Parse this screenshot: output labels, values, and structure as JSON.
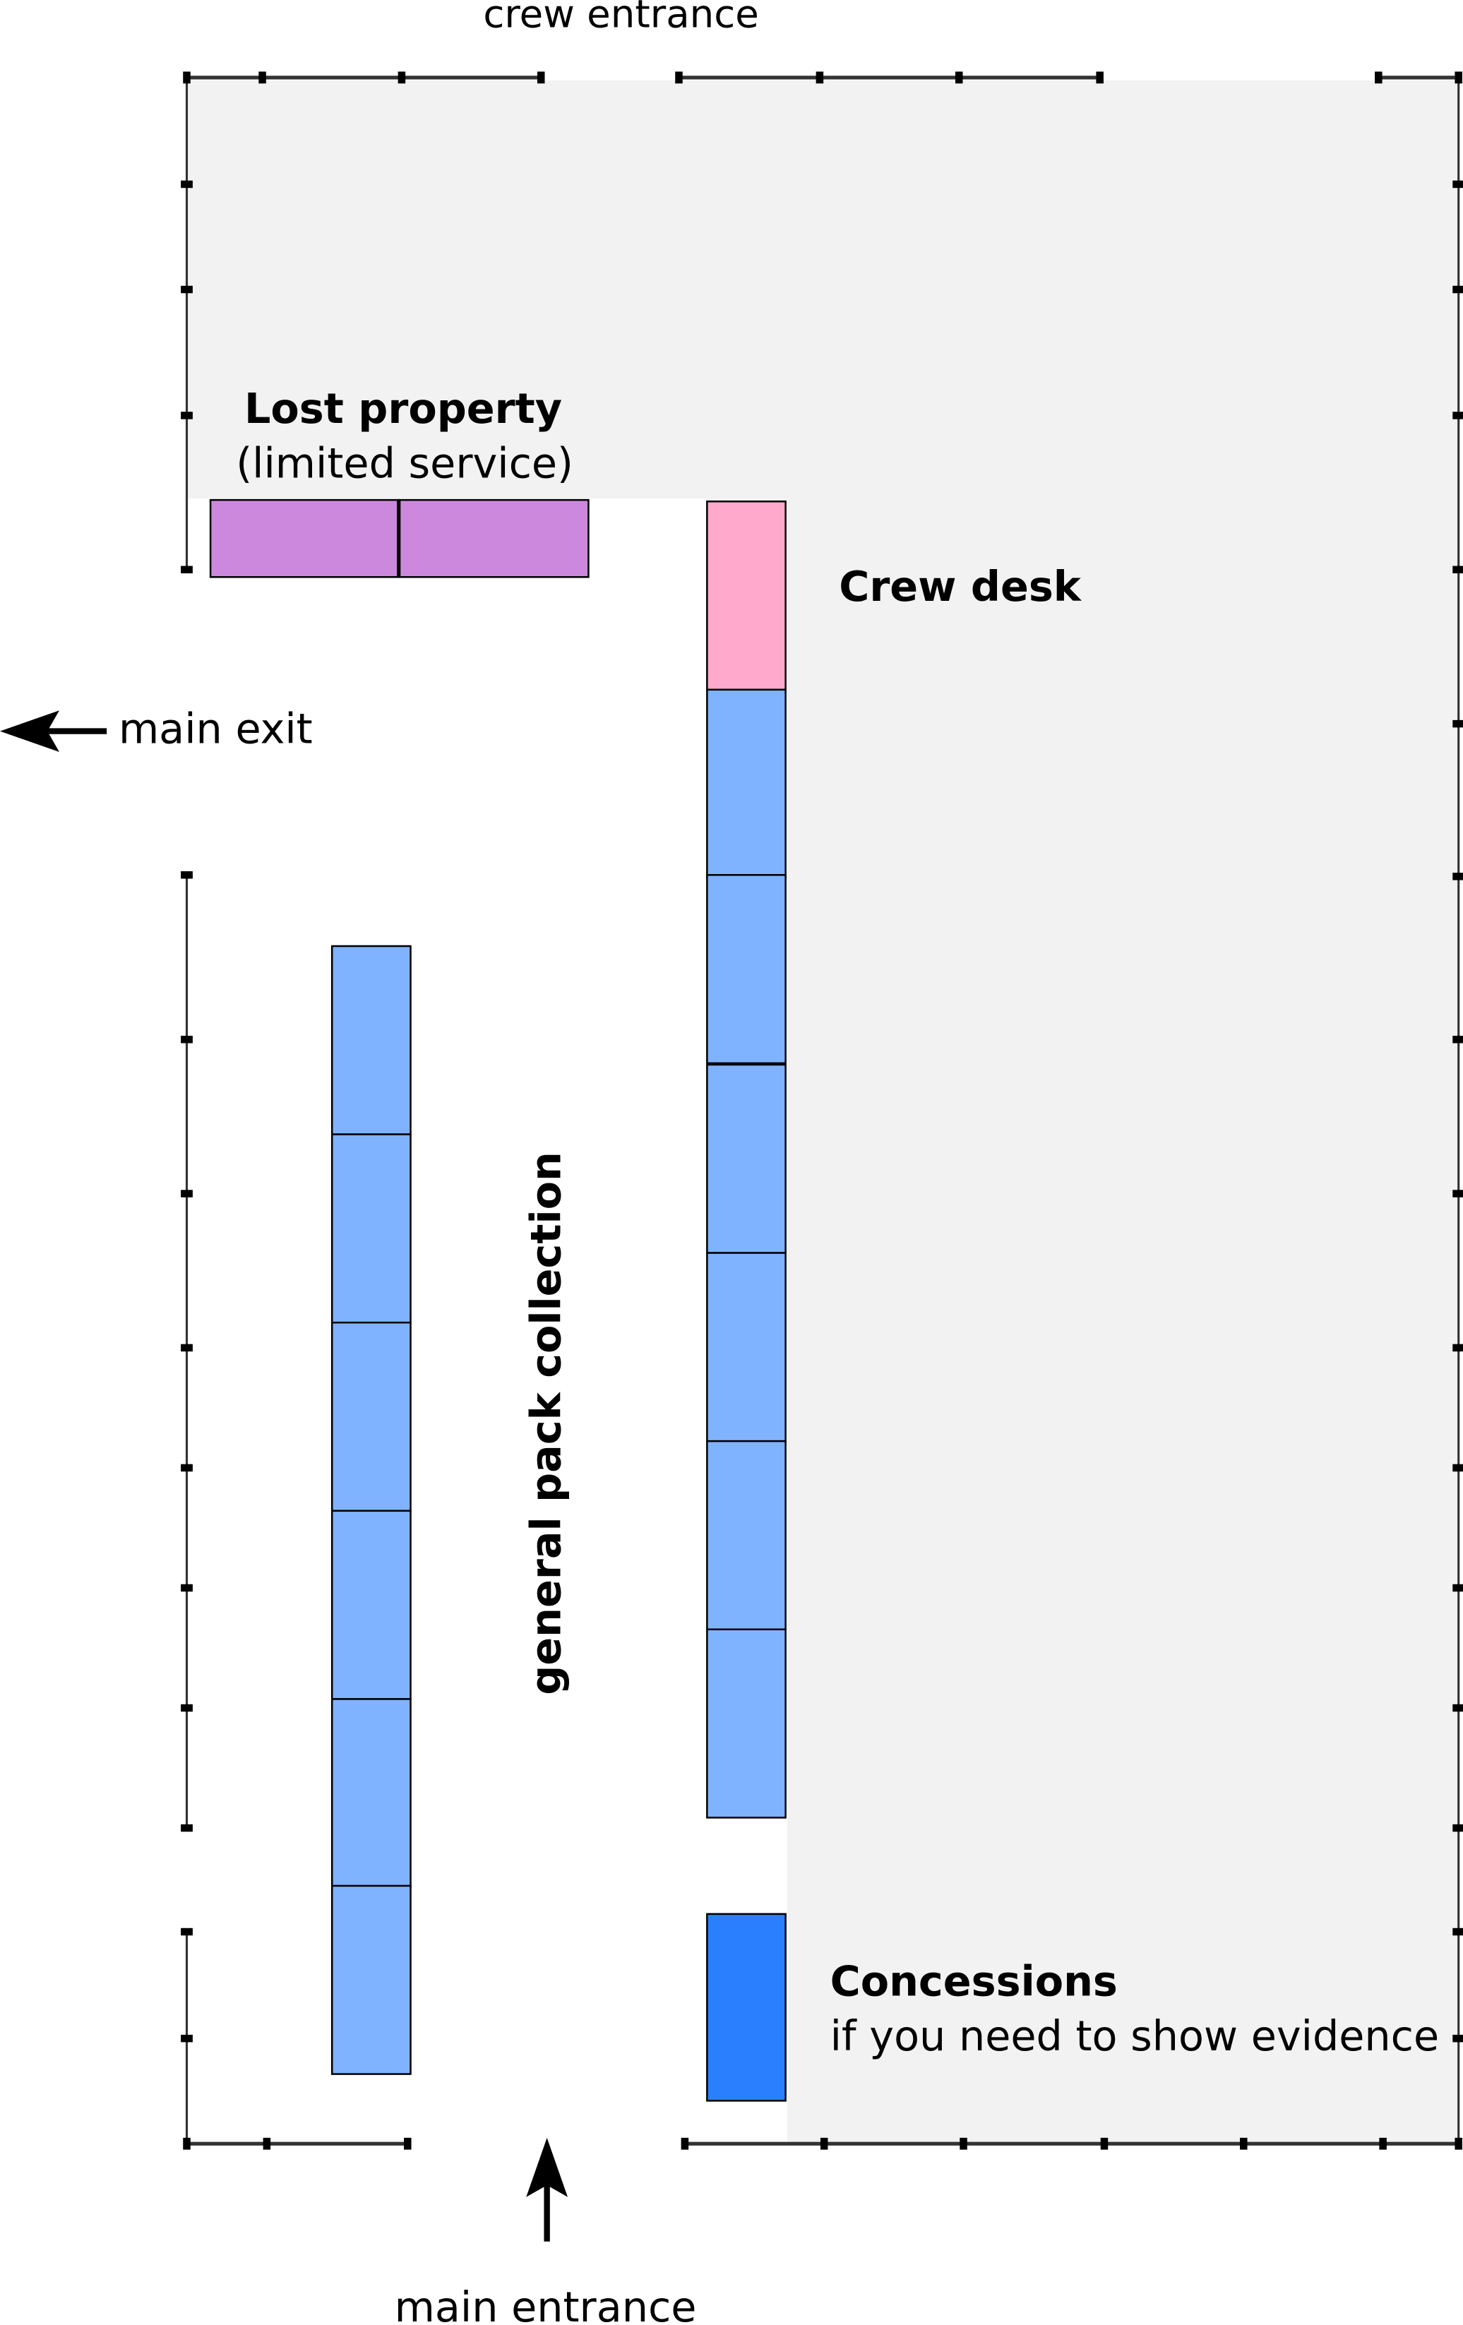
{
  "labels": {
    "crew_entrance": "crew entrance",
    "lost_property_title": "Lost property",
    "lost_property_note": "(limited service)",
    "crew_desk": "Crew desk",
    "main_exit": "main exit",
    "general_pack": "general pack collection",
    "concessions_title": "Concessions",
    "concessions_note": "if you need to show evidence",
    "main_entrance": "main entrance"
  },
  "colors": {
    "lost_property": "#cc88dd",
    "crew_desk": "#ffaacc",
    "pack_slot": "#80b3ff",
    "concessions": "#2a7fff",
    "crew_area": "#f2f2f2",
    "wall": "#333333"
  },
  "icons": {
    "main_exit_arrow": "arrow-left-icon",
    "main_entrance_arrow": "arrow-up-icon"
  }
}
